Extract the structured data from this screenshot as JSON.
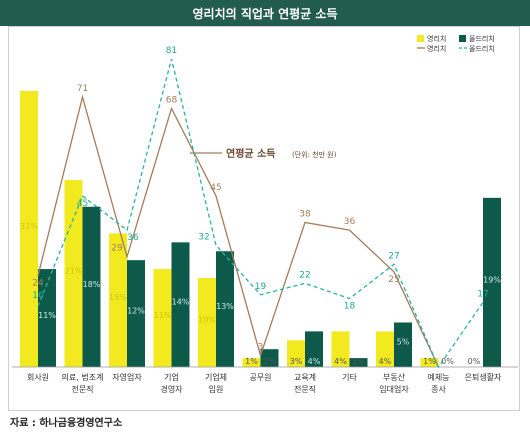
{
  "title": "영리치의 직업과 연평균 소득",
  "source": "자료 : 하나금융경영연구소",
  "annotation": {
    "main": "연평균 소득",
    "sub": "(단위: 천만 원)"
  },
  "legend": {
    "bar_young": "영리치",
    "bar_old": "올드리치",
    "line_young": "영리치",
    "line_old": "올드리치"
  },
  "colors": {
    "young_bar": "#f2ea1e",
    "old_bar": "#0d5a4b",
    "young_line": "#a57c5c",
    "old_line": "#27b3a3",
    "young_pct_label": "#cfc413",
    "old_pct_label": "#c8ebe5",
    "young_income_label": "#a57c5c",
    "old_income_label": "#1fa896"
  },
  "chart_data": {
    "type": "bar",
    "categories": [
      [
        "회사원"
      ],
      [
        "의료, 법조계",
        "전문직"
      ],
      [
        "자영업자"
      ],
      [
        "기업",
        "경영자"
      ],
      [
        "기업체",
        "임원"
      ],
      [
        "공무원"
      ],
      [
        "교육계",
        "전문직"
      ],
      [
        "기타"
      ],
      [
        "부동산",
        "임대업자"
      ],
      [
        "예체능",
        "종사"
      ],
      [
        "은퇴생활자"
      ]
    ],
    "series": [
      {
        "name": "영리치",
        "kind": "bar",
        "values": [
          31,
          21,
          15,
          11,
          10,
          1,
          3,
          4,
          4,
          1,
          0
        ],
        "labels": [
          "31%",
          "21%",
          "15%",
          "11%",
          "10%",
          "1%",
          "3%",
          "4%",
          "4%",
          "1%",
          "0%"
        ]
      },
      {
        "name": "올드리치",
        "kind": "bar",
        "values": [
          11,
          18,
          12,
          14,
          13,
          2,
          4,
          1,
          5,
          0,
          19
        ],
        "labels": [
          "11%",
          "18%",
          "12%",
          "14%",
          "13%",
          "2%",
          "4%",
          "1%",
          "5%",
          "0%",
          "19%"
        ]
      },
      {
        "name": "영리치",
        "kind": "line",
        "values": [
          24,
          71,
          29,
          68,
          45,
          3,
          38,
          36,
          25,
          0,
          null
        ],
        "labels": [
          "24",
          "71",
          "29",
          "68",
          "45",
          "3",
          "38",
          "36",
          "25",
          "",
          ""
        ]
      },
      {
        "name": "올드리치",
        "kind": "line",
        "values": [
          16,
          45,
          36,
          81,
          32,
          19,
          22,
          18,
          27,
          0,
          17
        ],
        "labels": [
          "16",
          "45",
          "36",
          "81",
          "32",
          "19",
          "22",
          "18",
          "27",
          "",
          "17"
        ]
      }
    ]
  }
}
